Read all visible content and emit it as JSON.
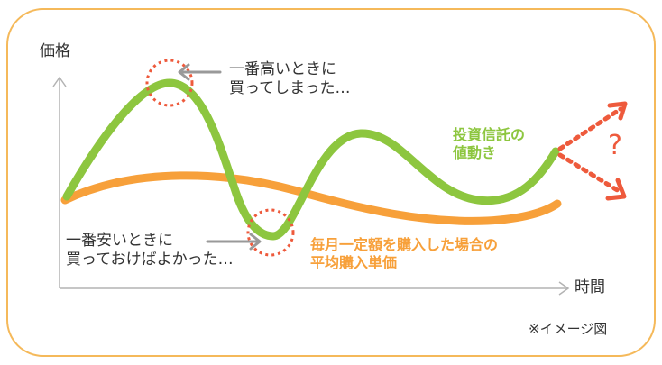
{
  "axis": {
    "y_label": "価格",
    "x_label": "時間"
  },
  "annotations": {
    "highest": [
      "一番高いときに",
      "買ってしまった…"
    ],
    "lowest": [
      "一番安いときに",
      "買っておけばよかった…"
    ]
  },
  "legend": {
    "fund": [
      "投資信託の",
      "値動き"
    ],
    "average": [
      "毎月一定額を購入した場合の",
      "平均購入単価"
    ]
  },
  "question_mark": "?",
  "note": "※イメージ図",
  "colors": {
    "fund_line": "#8dc63f",
    "average_line": "#f7a03a",
    "circle": "#ee5a3c",
    "frame": "#f5b95a",
    "arrow": "#999999"
  }
}
